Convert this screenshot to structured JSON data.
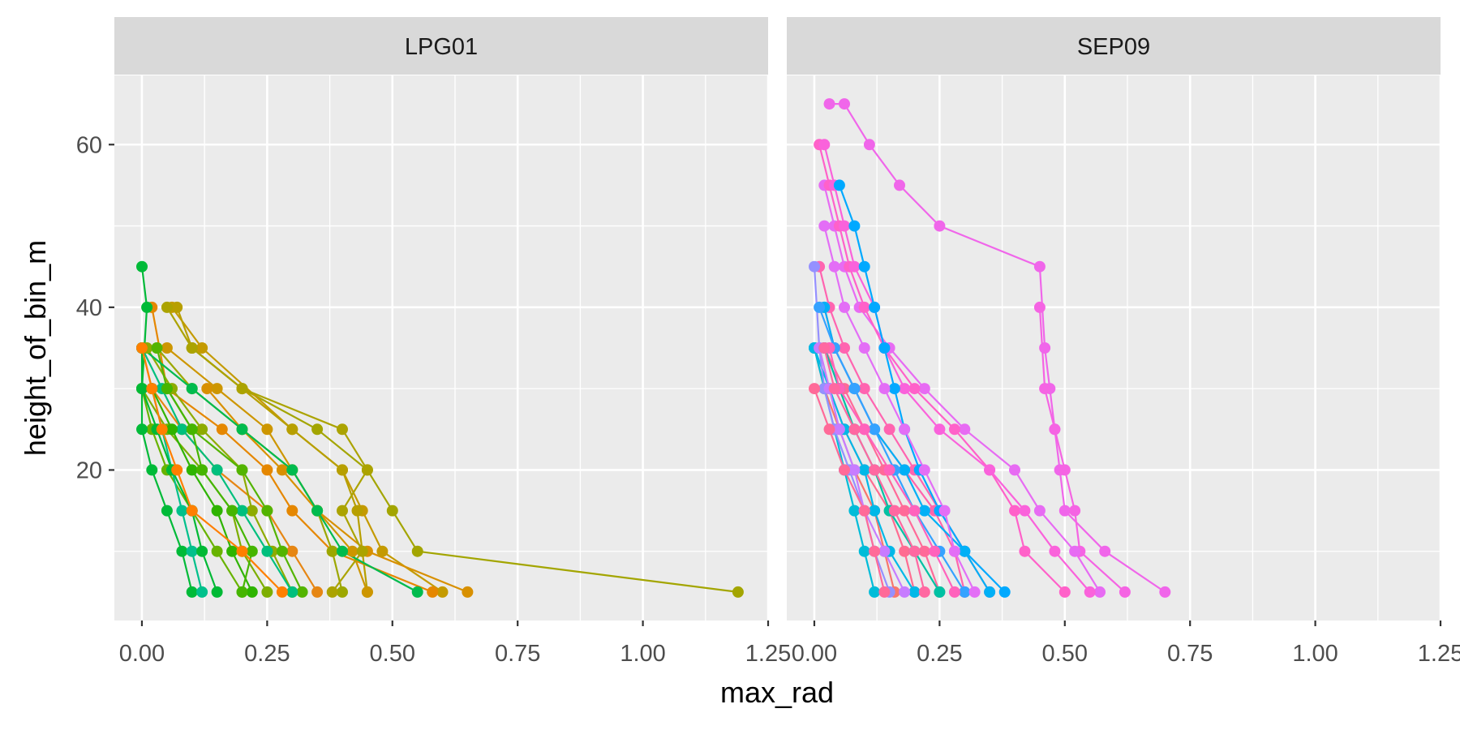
{
  "chart_data": {
    "type": "line",
    "facet_by": "site",
    "panels": [
      "LPG01",
      "SEP09"
    ],
    "xlabel": "max_rad",
    "ylabel": "height_of_bin_m",
    "xlim": [
      -0.055,
      1.25
    ],
    "ylim": [
      1.5,
      68.5
    ],
    "x_ticks": [
      0,
      0.25,
      0.5,
      0.75,
      1.0,
      1.25
    ],
    "x_tick_labels": [
      "0.00",
      "0.25",
      "0.50",
      "0.75",
      "1.00",
      "1.25"
    ],
    "y_ticks": [
      20,
      40,
      60
    ],
    "y_tick_labels": [
      "20",
      "40",
      "60"
    ],
    "grid": true,
    "legend": "none",
    "markers": "points",
    "series": [
      {
        "panel": "LPG01",
        "color": "#A3A500",
        "x": [
          1.19,
          0.55,
          0.5,
          0.45,
          0.35,
          0.2,
          0.1
        ],
        "y": [
          5,
          10,
          15,
          20,
          25,
          30,
          35
        ]
      },
      {
        "panel": "LPG01",
        "color": "#C49A00",
        "x": [
          0.6,
          0.48,
          0.44,
          0.4,
          0.3,
          0.12,
          0.06
        ],
        "y": [
          5,
          10,
          15,
          20,
          25,
          35,
          40
        ]
      },
      {
        "panel": "LPG01",
        "color": "#D89000",
        "x": [
          0.65,
          0.45,
          0.35,
          0.28,
          0.2,
          0.13
        ],
        "y": [
          5,
          10,
          15,
          20,
          25,
          30
        ]
      },
      {
        "panel": "LPG01",
        "color": "#E58700",
        "x": [
          0.58,
          0.38,
          0.3,
          0.25,
          0.16,
          0.05,
          0.02
        ],
        "y": [
          5,
          10,
          15,
          20,
          25,
          30,
          40
        ]
      },
      {
        "panel": "LPG01",
        "color": "#B79F00",
        "x": [
          0.45,
          0.44,
          0.43,
          0.4,
          0.3,
          0.2,
          0.1,
          0.07
        ],
        "y": [
          5,
          10,
          15,
          20,
          25,
          30,
          35,
          40
        ]
      },
      {
        "panel": "LPG01",
        "color": "#9CA700",
        "x": [
          0.4,
          0.38,
          0.35,
          0.3,
          0.2,
          0.1,
          0.03
        ],
        "y": [
          5,
          10,
          15,
          20,
          25,
          30,
          35
        ]
      },
      {
        "panel": "LPG01",
        "color": "#E68613",
        "x": [
          0.35,
          0.3,
          0.25,
          0.15,
          0.08,
          0.02,
          0.0
        ],
        "y": [
          5,
          10,
          15,
          20,
          25,
          30,
          35
        ]
      },
      {
        "panel": "LPG01",
        "color": "#CD9600",
        "x": [
          0.45,
          0.42,
          0.35,
          0.3,
          0.25,
          0.15,
          0.05
        ],
        "y": [
          5,
          10,
          15,
          20,
          25,
          30,
          35
        ]
      },
      {
        "panel": "LPG01",
        "color": "#ABA300",
        "x": [
          0.38,
          0.44,
          0.4,
          0.45,
          0.4,
          0.2,
          0.1,
          0.05
        ],
        "y": [
          5,
          10,
          15,
          20,
          25,
          30,
          35,
          40
        ]
      },
      {
        "panel": "LPG01",
        "color": "#8EAB00",
        "x": [
          0.3,
          0.26,
          0.22,
          0.2,
          0.12,
          0.06,
          0.01
        ],
        "y": [
          5,
          10,
          15,
          20,
          25,
          30,
          35
        ]
      },
      {
        "panel": "LPG01",
        "color": "#7CAE00",
        "x": [
          0.25,
          0.2,
          0.18,
          0.12,
          0.05,
          0.0
        ],
        "y": [
          5,
          10,
          15,
          20,
          25,
          30
        ]
      },
      {
        "panel": "LPG01",
        "color": "#68B300",
        "x": [
          0.2,
          0.15,
          0.1,
          0.05,
          0.02,
          0.0
        ],
        "y": [
          5,
          10,
          15,
          20,
          25,
          30
        ]
      },
      {
        "panel": "LPG01",
        "color": "#53B400",
        "x": [
          0.32,
          0.28,
          0.25,
          0.2,
          0.1,
          0.05,
          0.03
        ],
        "y": [
          5,
          10,
          15,
          20,
          25,
          30,
          35
        ]
      },
      {
        "panel": "LPG01",
        "color": "#00BA38",
        "x": [
          0.1,
          0.08,
          0.05,
          0.02,
          0.0,
          0.0,
          0.01,
          0.0
        ],
        "y": [
          5,
          10,
          15,
          20,
          25,
          30,
          40,
          45
        ]
      },
      {
        "panel": "LPG01",
        "color": "#00BB4E",
        "x": [
          0.55,
          0.4,
          0.35,
          0.3,
          0.2,
          0.1,
          0.0
        ],
        "y": [
          5,
          10,
          15,
          20,
          25,
          30,
          35
        ]
      },
      {
        "panel": "LPG01",
        "color": "#00BF7D",
        "x": [
          0.3,
          0.25,
          0.2,
          0.15,
          0.08,
          0.04,
          0.0
        ],
        "y": [
          5,
          10,
          15,
          20,
          25,
          30,
          35
        ]
      },
      {
        "panel": "LPG01",
        "color": "#00C08B",
        "x": [
          0.12,
          0.1,
          0.08,
          0.06,
          0.04,
          0.02
        ],
        "y": [
          5,
          10,
          15,
          20,
          25,
          30
        ]
      },
      {
        "panel": "LPG01",
        "color": "#2EB400",
        "x": [
          0.22,
          0.18,
          0.15,
          0.1,
          0.06,
          0.02
        ],
        "y": [
          5,
          10,
          15,
          20,
          25,
          30
        ]
      },
      {
        "panel": "LPG01",
        "color": "#00B935",
        "x": [
          0.15,
          0.12,
          0.1,
          0.06,
          0.03,
          0.0,
          0.0
        ],
        "y": [
          5,
          10,
          15,
          20,
          25,
          30,
          35
        ]
      },
      {
        "panel": "LPG01",
        "color": "#45B500",
        "x": [
          0.2,
          0.22,
          0.18,
          0.12,
          0.1,
          0.05
        ],
        "y": [
          5,
          10,
          15,
          20,
          25,
          30
        ]
      },
      {
        "panel": "LPG01",
        "color": "#FF7F00",
        "x": [
          0.28,
          0.2,
          0.1,
          0.07,
          0.04,
          0.02,
          0.0
        ],
        "y": [
          5,
          10,
          15,
          20,
          25,
          30,
          35
        ]
      },
      {
        "panel": "SEP09",
        "color": "#F066EA",
        "x": [
          0.7,
          0.58,
          0.5,
          0.49,
          0.48,
          0.47,
          0.46,
          0.45,
          0.25,
          0.17,
          0.11,
          0.06,
          0.03
        ],
        "y": [
          5,
          10,
          15,
          20,
          25,
          30,
          35,
          45,
          50,
          55,
          60,
          65,
          65
        ]
      },
      {
        "panel": "SEP09",
        "color": "#F564E3",
        "x": [
          0.62,
          0.53,
          0.52,
          0.5,
          0.48,
          0.46,
          0.45
        ],
        "y": [
          5,
          10,
          15,
          20,
          25,
          30,
          40
        ]
      },
      {
        "panel": "SEP09",
        "color": "#E76BF3",
        "x": [
          0.57,
          0.52,
          0.45,
          0.4,
          0.3,
          0.22,
          0.15,
          0.09,
          0.06,
          0.04,
          0.02
        ],
        "y": [
          5,
          10,
          15,
          20,
          25,
          30,
          35,
          40,
          45,
          50,
          55
        ]
      },
      {
        "panel": "SEP09",
        "color": "#FF61C9",
        "x": [
          0.5,
          0.42,
          0.4,
          0.35,
          0.28,
          0.2,
          0.14,
          0.1,
          0.07,
          0.05,
          0.03,
          0.01
        ],
        "y": [
          5,
          10,
          15,
          20,
          25,
          30,
          35,
          40,
          45,
          50,
          55,
          60
        ]
      },
      {
        "panel": "SEP09",
        "color": "#FA62DB",
        "x": [
          0.55,
          0.48,
          0.42,
          0.35,
          0.25,
          0.18,
          0.14,
          0.12,
          0.08,
          0.06,
          0.04,
          0.02
        ],
        "y": [
          5,
          10,
          15,
          20,
          25,
          30,
          35,
          40,
          45,
          50,
          55,
          60
        ]
      },
      {
        "panel": "SEP09",
        "color": "#FF64B0",
        "x": [
          0.35,
          0.3,
          0.25,
          0.2,
          0.15,
          0.1,
          0.06,
          0.03,
          0.01
        ],
        "y": [
          5,
          10,
          15,
          20,
          25,
          30,
          35,
          40,
          45
        ]
      },
      {
        "panel": "SEP09",
        "color": "#FF65AC",
        "x": [
          0.3,
          0.28,
          0.24,
          0.18,
          0.12,
          0.08,
          0.04,
          0.02
        ],
        "y": [
          5,
          10,
          15,
          20,
          25,
          30,
          35,
          40
        ]
      },
      {
        "panel": "SEP09",
        "color": "#FF6A98",
        "x": [
          0.25,
          0.22,
          0.18,
          0.14,
          0.1,
          0.06,
          0.02
        ],
        "y": [
          5,
          10,
          15,
          20,
          25,
          30,
          35
        ]
      },
      {
        "panel": "SEP09",
        "color": "#FF6C91",
        "x": [
          0.2,
          0.18,
          0.15,
          0.1,
          0.06,
          0.03,
          0.01
        ],
        "y": [
          5,
          10,
          15,
          20,
          25,
          30,
          35
        ]
      },
      {
        "panel": "SEP09",
        "color": "#F8766D",
        "x": [
          0.16,
          0.14,
          0.12,
          0.08,
          0.05,
          0.02,
          0.0
        ],
        "y": [
          5,
          10,
          15,
          20,
          25,
          30,
          35
        ]
      },
      {
        "panel": "SEP09",
        "color": "#00A9FF",
        "x": [
          0.38,
          0.3,
          0.25,
          0.21,
          0.18,
          0.16,
          0.14,
          0.12,
          0.1,
          0.08,
          0.05
        ],
        "y": [
          5,
          10,
          15,
          20,
          25,
          30,
          35,
          40,
          45,
          50,
          55
        ]
      },
      {
        "panel": "SEP09",
        "color": "#00B0F6",
        "x": [
          0.35,
          0.3,
          0.22,
          0.18,
          0.12,
          0.08,
          0.04,
          0.02
        ],
        "y": [
          5,
          10,
          15,
          20,
          25,
          30,
          35,
          40
        ]
      },
      {
        "panel": "SEP09",
        "color": "#00BCD8",
        "x": [
          0.12,
          0.1,
          0.08,
          0.06,
          0.04,
          0.02,
          0.0
        ],
        "y": [
          5,
          10,
          15,
          20,
          25,
          30,
          35
        ]
      },
      {
        "panel": "SEP09",
        "color": "#35A2FF",
        "x": [
          0.3,
          0.25,
          0.2,
          0.16,
          0.12,
          0.08,
          0.04,
          0.01
        ],
        "y": [
          5,
          10,
          15,
          20,
          25,
          30,
          35,
          40
        ]
      },
      {
        "panel": "SEP09",
        "color": "#00B8E7",
        "x": [
          0.2,
          0.15,
          0.12,
          0.1,
          0.06,
          0.03,
          0.0
        ],
        "y": [
          5,
          10,
          15,
          20,
          25,
          30,
          35
        ]
      },
      {
        "panel": "SEP09",
        "color": "#9590FF",
        "x": [
          0.15,
          0.12,
          0.1,
          0.07,
          0.04,
          0.02,
          0.01,
          0.0
        ],
        "y": [
          5,
          10,
          15,
          20,
          25,
          30,
          35,
          45
        ]
      },
      {
        "panel": "SEP09",
        "color": "#C77CFF",
        "x": [
          0.18,
          0.14,
          0.1,
          0.08,
          0.05,
          0.03,
          0.01
        ],
        "y": [
          5,
          10,
          15,
          20,
          25,
          30,
          35
        ]
      },
      {
        "panel": "SEP09",
        "color": "#00C1A3",
        "x": [
          0.25,
          0.2,
          0.15,
          0.12,
          0.08,
          0.05,
          0.02
        ],
        "y": [
          5,
          10,
          15,
          20,
          25,
          30,
          35
        ]
      },
      {
        "panel": "SEP09",
        "color": "#FF62BC",
        "x": [
          0.28,
          0.24,
          0.2,
          0.15,
          0.1,
          0.05,
          0.03
        ],
        "y": [
          5,
          10,
          15,
          20,
          25,
          30,
          35
        ]
      },
      {
        "panel": "SEP09",
        "color": "#E36EF6",
        "x": [
          0.32,
          0.28,
          0.26,
          0.22,
          0.18,
          0.14,
          0.1,
          0.06,
          0.04,
          0.02
        ],
        "y": [
          5,
          10,
          15,
          20,
          25,
          30,
          35,
          40,
          45,
          50
        ]
      },
      {
        "panel": "SEP09",
        "color": "#FF68A1",
        "x": [
          0.22,
          0.2,
          0.16,
          0.12,
          0.08,
          0.04,
          0.02
        ],
        "y": [
          5,
          10,
          15,
          20,
          25,
          30,
          35
        ]
      },
      {
        "panel": "SEP09",
        "color": "#FF6A98",
        "x": [
          0.14,
          0.12,
          0.1,
          0.06,
          0.03,
          0.0
        ],
        "y": [
          5,
          10,
          15,
          20,
          25,
          30
        ]
      }
    ]
  }
}
